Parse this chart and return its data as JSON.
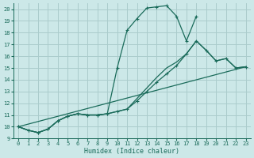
{
  "title": "",
  "xlabel": "Humidex (Indice chaleur)",
  "bg_color": "#cce8e8",
  "grid_color": "#aacccc",
  "line_color": "#1a6b5a",
  "xlim": [
    -0.5,
    23.5
  ],
  "ylim": [
    9,
    20.5
  ],
  "xticks": [
    0,
    1,
    2,
    3,
    4,
    5,
    6,
    7,
    8,
    9,
    10,
    11,
    12,
    13,
    14,
    15,
    16,
    17,
    18,
    19,
    20,
    21,
    22,
    23
  ],
  "yticks": [
    9,
    10,
    11,
    12,
    13,
    14,
    15,
    16,
    17,
    18,
    19,
    20
  ],
  "line1_x": [
    0,
    1,
    2,
    3,
    4,
    5,
    6,
    7,
    8,
    9,
    10,
    11,
    12,
    13,
    14,
    15,
    16,
    17,
    18
  ],
  "line1_y": [
    10.0,
    9.7,
    9.5,
    9.8,
    10.5,
    10.9,
    11.1,
    11.0,
    11.0,
    11.1,
    15.0,
    18.2,
    19.2,
    20.1,
    20.2,
    20.3,
    19.4,
    17.3,
    19.4
  ],
  "line2_x": [
    0,
    1,
    2,
    3,
    4,
    5,
    6,
    7,
    8,
    9,
    10,
    11,
    12,
    13,
    14,
    15,
    16,
    17,
    18,
    19,
    20,
    21,
    22,
    23
  ],
  "line2_y": [
    10.0,
    9.7,
    9.5,
    9.8,
    10.5,
    10.9,
    11.1,
    11.0,
    11.0,
    11.1,
    11.3,
    11.5,
    12.2,
    13.0,
    13.8,
    14.5,
    15.2,
    16.2,
    17.3,
    16.5,
    15.6,
    15.8,
    15.0,
    15.1
  ],
  "line3_x": [
    0,
    23
  ],
  "line3_y": [
    10.0,
    15.1
  ],
  "line4_x": [
    0,
    1,
    2,
    3,
    4,
    5,
    6,
    7,
    8,
    9,
    10,
    11,
    12,
    13,
    14,
    15,
    16,
    17,
    18,
    19,
    20,
    21,
    22,
    23
  ],
  "line4_y": [
    10.0,
    9.7,
    9.5,
    9.8,
    10.5,
    10.9,
    11.1,
    11.0,
    11.0,
    11.1,
    11.3,
    11.5,
    12.4,
    13.3,
    14.2,
    15.0,
    15.5,
    16.2,
    17.3,
    16.5,
    15.6,
    15.8,
    15.0,
    15.1
  ]
}
